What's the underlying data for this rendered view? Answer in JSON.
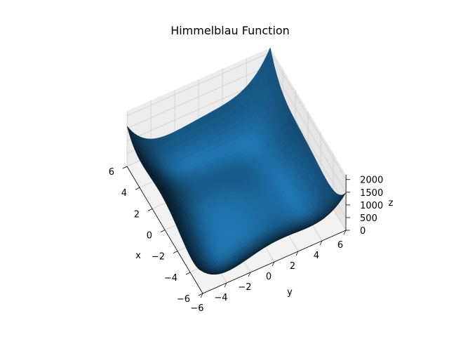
{
  "chart_data": {
    "type": "surface",
    "title": "Himmelblau Function",
    "function": "(x^2 + y - 11)^2 + (x + y^2 - 7)^2",
    "xlabel": "x",
    "ylabel": "y",
    "zlabel": "z",
    "xlim": [
      -6,
      6
    ],
    "ylim": [
      -6,
      6
    ],
    "zlim": [
      0,
      2186
    ],
    "x_ticks": [
      "−6",
      "−4",
      "−2",
      "0",
      "2",
      "4",
      "6"
    ],
    "y_ticks": [
      "−6",
      "−4",
      "−2",
      "0",
      "2",
      "4",
      "6"
    ],
    "z_ticks": [
      "0",
      "500",
      "1000",
      "1500",
      "2000"
    ],
    "grid": true,
    "colors": {
      "surface": "#1f77b4",
      "pane": "#f2f2f2",
      "grid": "#cfcfcf"
    }
  }
}
